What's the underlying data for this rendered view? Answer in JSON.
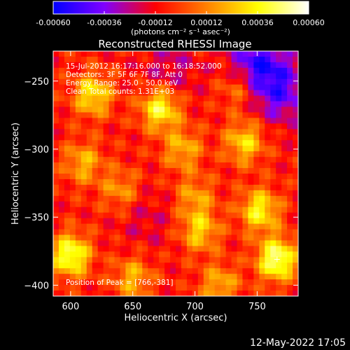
{
  "colorbar": {
    "ticks": [
      "-0.00060",
      "-0.00036",
      "-0.00012",
      "0.00012",
      "0.00036",
      "0.00060"
    ],
    "tick_values": [
      -0.0006,
      -0.00036,
      -0.00012,
      0.00012,
      0.00036,
      0.0006
    ],
    "range": [
      -0.0006,
      0.0006
    ],
    "unit_label": "(photons cm⁻² s⁻¹ asec⁻²)",
    "colors": [
      "#0000ff",
      "#8000ff",
      "#ff0000",
      "#ff8000",
      "#ffff00",
      "#ffffff"
    ]
  },
  "chart_data": {
    "type": "heatmap",
    "title": "Reconstructed RHESSI Image",
    "xlabel": "Heliocentric X (arcsec)",
    "ylabel": "Heliocentric Y (arcsec)",
    "xlim": [
      586,
      783
    ],
    "ylim": [
      -408,
      -228
    ],
    "xticks": [
      600,
      650,
      700,
      750
    ],
    "xtick_labels": [
      "600",
      "650",
      "700",
      "750"
    ],
    "yticks": [
      -250,
      -300,
      -350,
      -400
    ],
    "ytick_labels": [
      "−250",
      "−300",
      "−350",
      "−400"
    ],
    "annotations": [
      "15-Jul-2012 16:17:16.000 to 16:18:52.000",
      "Detectors: 3F 5F 6F 7F 8F, Att 0",
      "Energy Range: 25.0 - 50.0 keV",
      "Clean     Total counts: 1.31E+03"
    ],
    "peak_label": "Position of Peak = [766,-381]",
    "peak_position": [
      766,
      -381
    ],
    "hotspots": [
      {
        "x": 766,
        "y": -381,
        "v": 0.0006
      },
      {
        "x": 600,
        "y": -378,
        "v": 0.00055
      },
      {
        "x": 672,
        "y": -270,
        "v": 0.0005
      },
      {
        "x": 618,
        "y": -260,
        "v": 0.00042
      },
      {
        "x": 740,
        "y": -295,
        "v": 0.00038
      },
      {
        "x": 752,
        "y": -345,
        "v": 0.00045
      },
      {
        "x": 704,
        "y": -360,
        "v": 0.00035
      },
      {
        "x": 690,
        "y": -300,
        "v": 0.0003
      },
      {
        "x": 640,
        "y": -330,
        "v": 0.00025
      },
      {
        "x": 610,
        "y": -310,
        "v": 0.0003
      },
      {
        "x": 720,
        "y": -400,
        "v": 0.0003
      },
      {
        "x": 650,
        "y": -395,
        "v": 0.0003
      },
      {
        "x": 735,
        "y": -255,
        "v": 0.00025
      },
      {
        "x": 700,
        "y": -335,
        "v": 0.00025
      }
    ],
    "coldspots": [
      {
        "x": 750,
        "y": -238,
        "v": -0.0004
      },
      {
        "x": 770,
        "y": -258,
        "v": -0.0003
      },
      {
        "x": 680,
        "y": -242,
        "v": -0.00015
      },
      {
        "x": 660,
        "y": -350,
        "v": -0.0001
      }
    ]
  },
  "footer": {
    "timestamp": "12-May-2022 17:05"
  }
}
